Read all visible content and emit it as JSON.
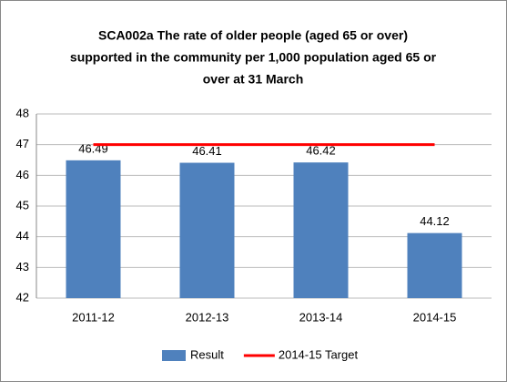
{
  "chart_data": {
    "type": "bar",
    "title": [
      "SCA002a The rate of older people (aged 65 or over)",
      "supported in the community per 1,000 population aged 65 or",
      "over at 31 March"
    ],
    "categories": [
      "2011-12",
      "2012-13",
      "2013-14",
      "2014-15"
    ],
    "series": [
      {
        "name": "Result",
        "type": "bar",
        "color": "#4f81bd",
        "values": [
          46.49,
          46.41,
          46.42,
          44.12
        ]
      },
      {
        "name": "2014-15 Target",
        "type": "line",
        "color": "#ff0000",
        "values": [
          47,
          47,
          47,
          47
        ]
      }
    ],
    "ylim": [
      42,
      48
    ],
    "yticks": [
      42,
      43,
      44,
      45,
      46,
      47,
      48
    ],
    "grid": true,
    "legend": "bottom"
  }
}
